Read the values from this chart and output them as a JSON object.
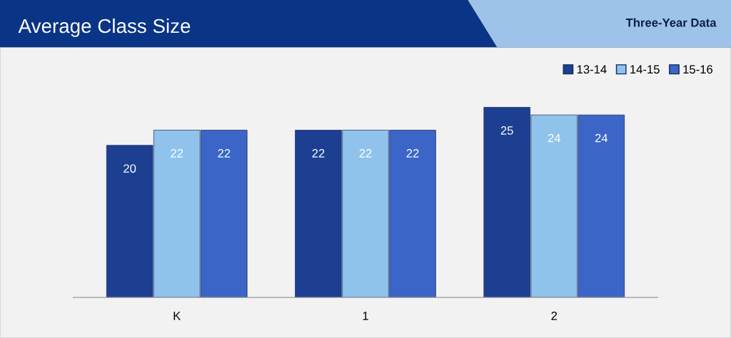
{
  "chart_data": {
    "type": "bar",
    "title": "Average Class Size",
    "subtitle": "Three-Year Data",
    "categories": [
      "K",
      "1",
      "2"
    ],
    "series": [
      {
        "name": "13-14",
        "color": "#1c3f91",
        "values": [
          20,
          22,
          25
        ]
      },
      {
        "name": "14-15",
        "color": "#8fc3ec",
        "values": [
          22,
          22,
          24
        ]
      },
      {
        "name": "15-16",
        "color": "#3b65c6",
        "values": [
          22,
          22,
          24
        ]
      }
    ],
    "data_labels": true,
    "grid": false,
    "legend": "top right"
  }
}
